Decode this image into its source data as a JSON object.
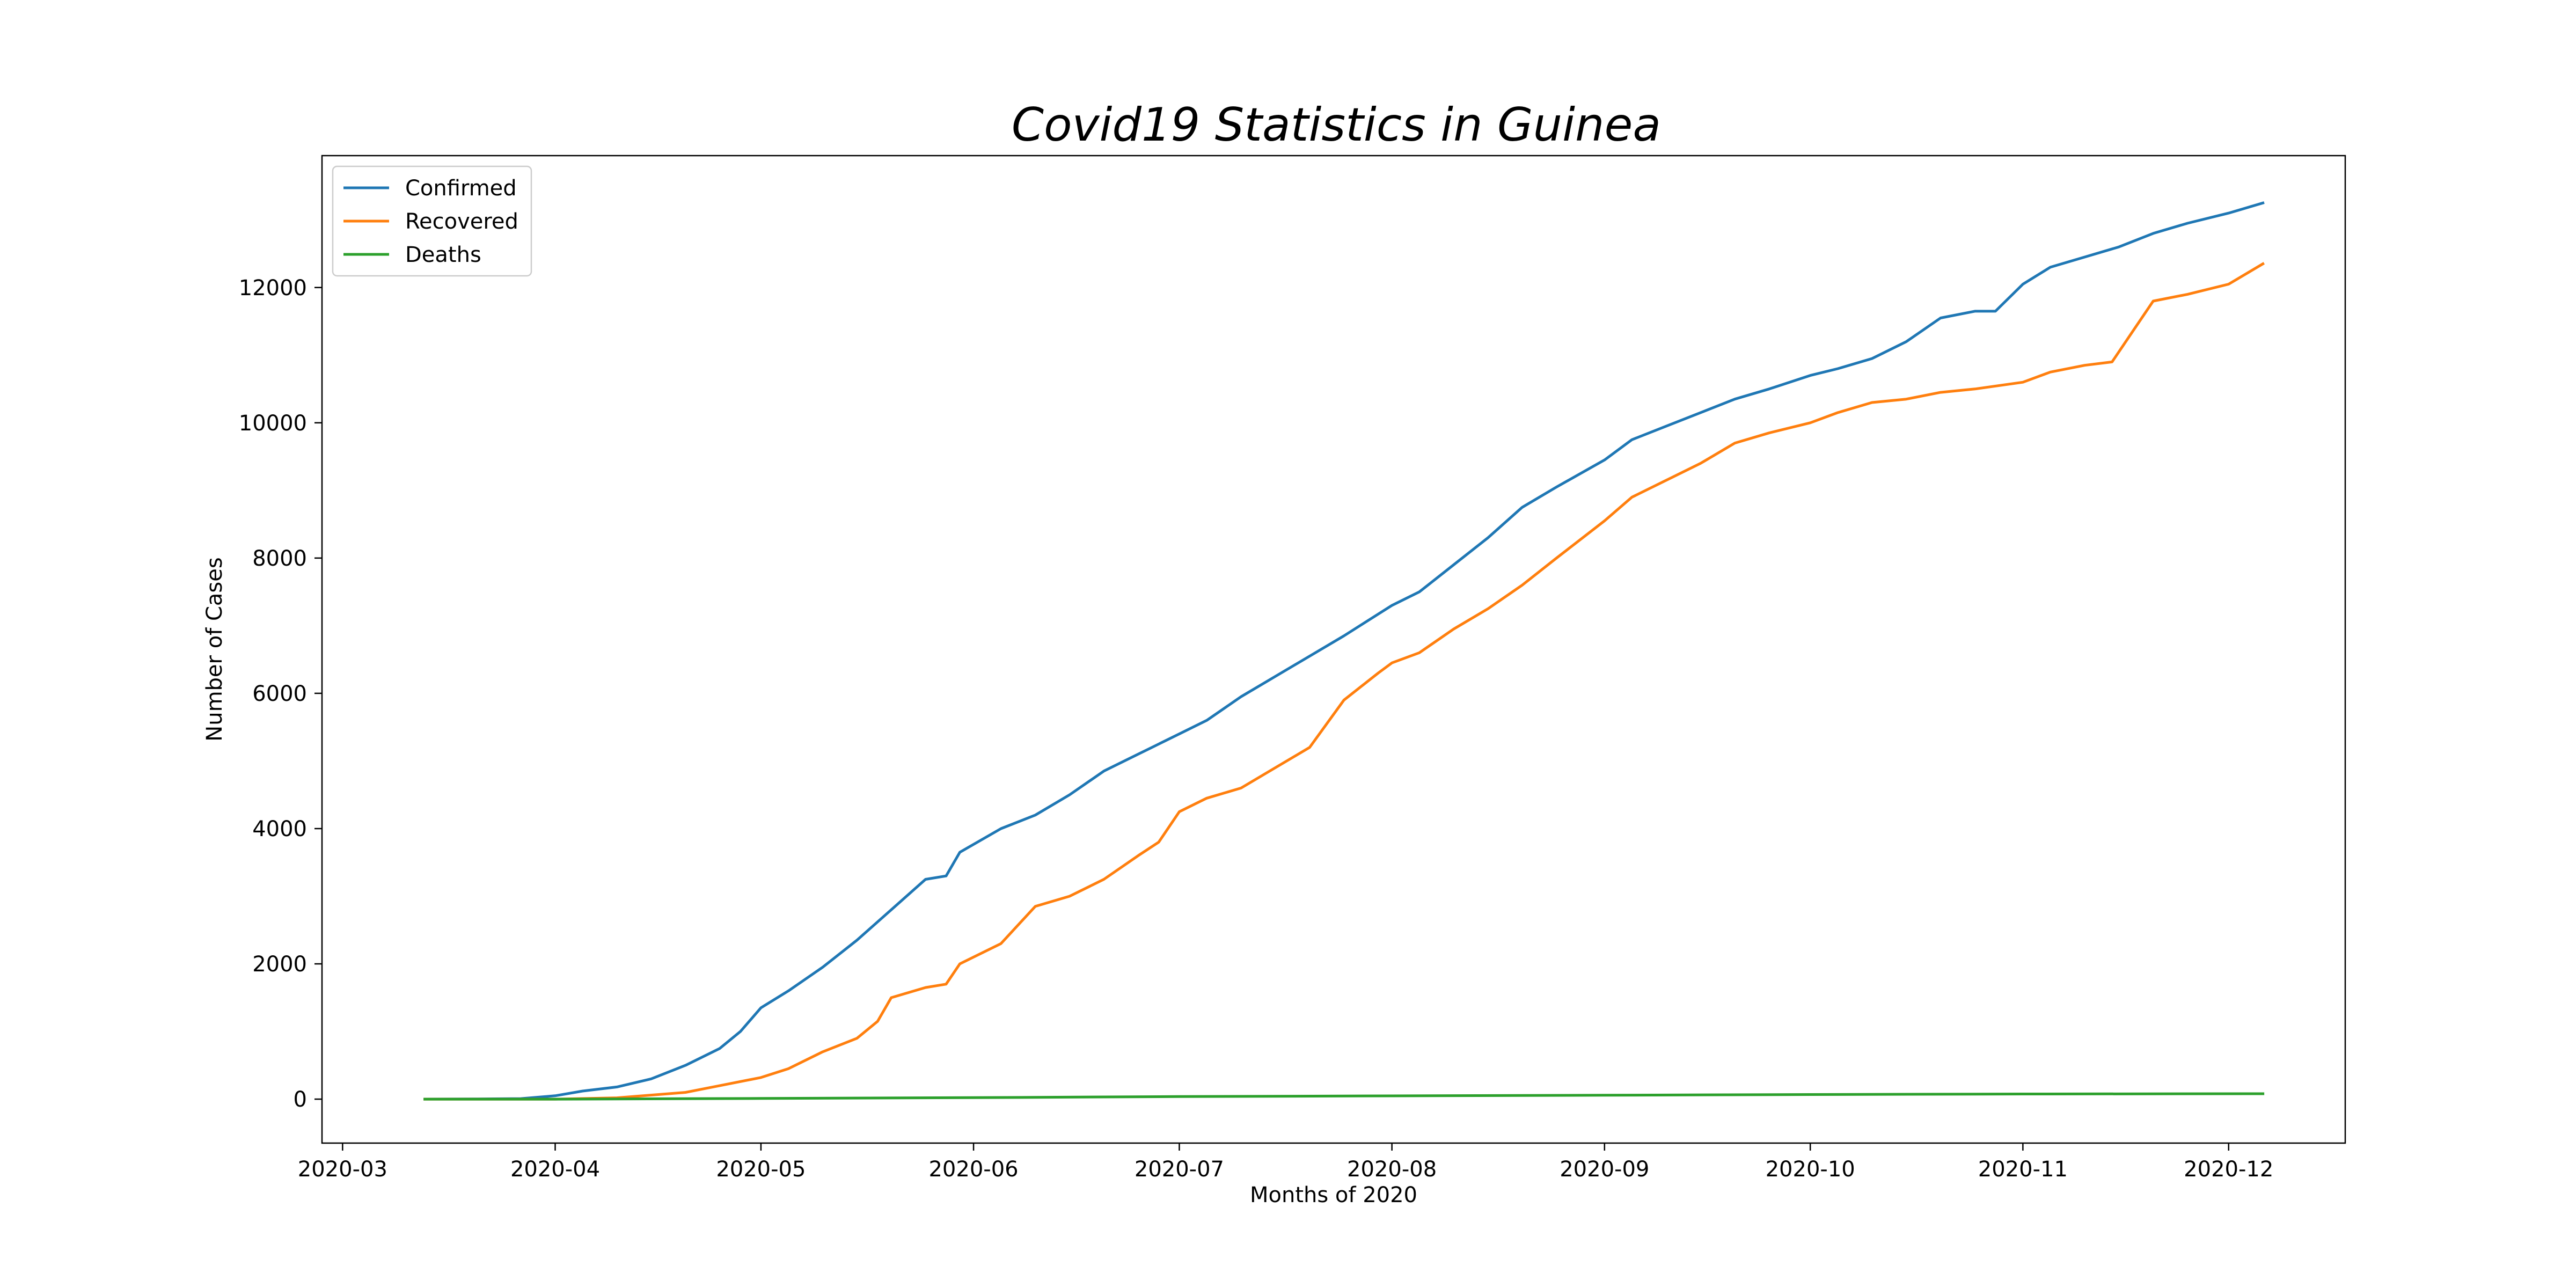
{
  "chart_data": {
    "type": "line",
    "title": "Covid19 Statistics in Guinea",
    "xlabel": "Months of 2020",
    "ylabel": "Number of Cases",
    "xlim": [
      "2020-02-27",
      "2020-12-18"
    ],
    "ylim": [
      -650,
      13950
    ],
    "x_ticks": [
      "2020-03-01",
      "2020-04-01",
      "2020-05-01",
      "2020-06-01",
      "2020-07-01",
      "2020-08-01",
      "2020-09-01",
      "2020-10-01",
      "2020-11-01",
      "2020-12-01"
    ],
    "x_tick_labels": [
      "2020-03",
      "2020-04",
      "2020-05",
      "2020-06",
      "2020-07",
      "2020-08",
      "2020-09",
      "2020-10",
      "2020-11",
      "2020-12"
    ],
    "y_ticks": [
      0,
      2000,
      4000,
      6000,
      8000,
      10000,
      12000
    ],
    "y_tick_labels": [
      "0",
      "2000",
      "4000",
      "6000",
      "8000",
      "10000",
      "12000"
    ],
    "grid": false,
    "legend_position": "top-left",
    "series": [
      {
        "name": "Confirmed",
        "color": "#1f77b4",
        "points": [
          [
            "2020-03-13",
            1
          ],
          [
            "2020-03-20",
            2
          ],
          [
            "2020-03-27",
            8
          ],
          [
            "2020-04-01",
            50
          ],
          [
            "2020-04-05",
            120
          ],
          [
            "2020-04-10",
            180
          ],
          [
            "2020-04-15",
            300
          ],
          [
            "2020-04-20",
            500
          ],
          [
            "2020-04-25",
            750
          ],
          [
            "2020-04-28",
            1000
          ],
          [
            "2020-05-01",
            1350
          ],
          [
            "2020-05-05",
            1600
          ],
          [
            "2020-05-10",
            1950
          ],
          [
            "2020-05-15",
            2350
          ],
          [
            "2020-05-20",
            2800
          ],
          [
            "2020-05-25",
            3250
          ],
          [
            "2020-05-28",
            3300
          ],
          [
            "2020-05-30",
            3650
          ],
          [
            "2020-06-05",
            4000
          ],
          [
            "2020-06-10",
            4200
          ],
          [
            "2020-06-15",
            4500
          ],
          [
            "2020-06-20",
            4850
          ],
          [
            "2020-06-25",
            5100
          ],
          [
            "2020-07-01",
            5400
          ],
          [
            "2020-07-05",
            5600
          ],
          [
            "2020-07-10",
            5950
          ],
          [
            "2020-07-15",
            6250
          ],
          [
            "2020-07-20",
            6550
          ],
          [
            "2020-07-25",
            6850
          ],
          [
            "2020-08-01",
            7300
          ],
          [
            "2020-08-05",
            7500
          ],
          [
            "2020-08-10",
            7900
          ],
          [
            "2020-08-15",
            8300
          ],
          [
            "2020-08-20",
            8750
          ],
          [
            "2020-08-25",
            9050
          ],
          [
            "2020-09-01",
            9450
          ],
          [
            "2020-09-05",
            9750
          ],
          [
            "2020-09-10",
            9950
          ],
          [
            "2020-09-15",
            10150
          ],
          [
            "2020-09-20",
            10350
          ],
          [
            "2020-09-25",
            10500
          ],
          [
            "2020-10-01",
            10700
          ],
          [
            "2020-10-05",
            10800
          ],
          [
            "2020-10-10",
            10950
          ],
          [
            "2020-10-15",
            11200
          ],
          [
            "2020-10-20",
            11550
          ],
          [
            "2020-10-25",
            11650
          ],
          [
            "2020-10-28",
            11650
          ],
          [
            "2020-11-01",
            12050
          ],
          [
            "2020-11-05",
            12300
          ],
          [
            "2020-11-10",
            12450
          ],
          [
            "2020-11-15",
            12600
          ],
          [
            "2020-11-20",
            12800
          ],
          [
            "2020-11-25",
            12950
          ],
          [
            "2020-12-01",
            13100
          ],
          [
            "2020-12-06",
            13250
          ]
        ]
      },
      {
        "name": "Recovered",
        "color": "#ff7f0e",
        "points": [
          [
            "2020-03-13",
            0
          ],
          [
            "2020-04-01",
            0
          ],
          [
            "2020-04-10",
            20
          ],
          [
            "2020-04-20",
            100
          ],
          [
            "2020-04-25",
            200
          ],
          [
            "2020-05-01",
            320
          ],
          [
            "2020-05-05",
            450
          ],
          [
            "2020-05-10",
            700
          ],
          [
            "2020-05-15",
            900
          ],
          [
            "2020-05-18",
            1150
          ],
          [
            "2020-05-20",
            1500
          ],
          [
            "2020-05-25",
            1650
          ],
          [
            "2020-05-28",
            1700
          ],
          [
            "2020-05-30",
            2000
          ],
          [
            "2020-06-05",
            2300
          ],
          [
            "2020-06-10",
            2850
          ],
          [
            "2020-06-15",
            3000
          ],
          [
            "2020-06-20",
            3250
          ],
          [
            "2020-06-25",
            3600
          ],
          [
            "2020-06-28",
            3800
          ],
          [
            "2020-07-01",
            4250
          ],
          [
            "2020-07-05",
            4450
          ],
          [
            "2020-07-10",
            4600
          ],
          [
            "2020-07-15",
            4900
          ],
          [
            "2020-07-20",
            5200
          ],
          [
            "2020-07-25",
            5900
          ],
          [
            "2020-07-30",
            6300
          ],
          [
            "2020-08-01",
            6450
          ],
          [
            "2020-08-05",
            6600
          ],
          [
            "2020-08-10",
            6950
          ],
          [
            "2020-08-15",
            7250
          ],
          [
            "2020-08-20",
            7600
          ],
          [
            "2020-08-25",
            8000
          ],
          [
            "2020-09-01",
            8550
          ],
          [
            "2020-09-05",
            8900
          ],
          [
            "2020-09-10",
            9150
          ],
          [
            "2020-09-15",
            9400
          ],
          [
            "2020-09-20",
            9700
          ],
          [
            "2020-09-25",
            9850
          ],
          [
            "2020-10-01",
            10000
          ],
          [
            "2020-10-05",
            10150
          ],
          [
            "2020-10-10",
            10300
          ],
          [
            "2020-10-15",
            10350
          ],
          [
            "2020-10-20",
            10450
          ],
          [
            "2020-10-25",
            10500
          ],
          [
            "2020-11-01",
            10600
          ],
          [
            "2020-11-05",
            10750
          ],
          [
            "2020-11-10",
            10850
          ],
          [
            "2020-11-14",
            10900
          ],
          [
            "2020-11-18",
            11500
          ],
          [
            "2020-11-20",
            11800
          ],
          [
            "2020-11-25",
            11900
          ],
          [
            "2020-12-01",
            12050
          ],
          [
            "2020-12-06",
            12350
          ]
        ]
      },
      {
        "name": "Deaths",
        "color": "#2ca02c",
        "points": [
          [
            "2020-03-13",
            0
          ],
          [
            "2020-04-01",
            0
          ],
          [
            "2020-05-01",
            10
          ],
          [
            "2020-06-01",
            22
          ],
          [
            "2020-07-01",
            38
          ],
          [
            "2020-08-01",
            48
          ],
          [
            "2020-09-01",
            58
          ],
          [
            "2020-10-01",
            68
          ],
          [
            "2020-11-01",
            76
          ],
          [
            "2020-12-06",
            80
          ]
        ]
      }
    ]
  }
}
